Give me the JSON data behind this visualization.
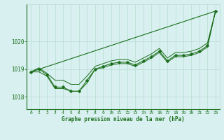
{
  "bg_color": "#d8f0f0",
  "grid_color": "#b8ddd0",
  "line_color": "#1a6e1a",
  "xlabel": "Graphe pression niveau de la mer (hPa)",
  "xlim": [
    -0.5,
    23.5
  ],
  "ylim": [
    1017.55,
    1021.35
  ],
  "yticks": [
    1018,
    1019,
    1020
  ],
  "xticks": [
    0,
    1,
    2,
    3,
    4,
    5,
    6,
    7,
    8,
    9,
    10,
    11,
    12,
    13,
    14,
    15,
    16,
    17,
    18,
    19,
    20,
    21,
    22,
    23
  ],
  "series": [
    {
      "x": [
        0,
        23
      ],
      "y": [
        1018.9,
        1021.1
      ],
      "marker": null,
      "linewidth": 0.8
    },
    {
      "x": [
        0,
        1,
        2,
        3,
        4,
        5,
        6,
        7,
        8,
        9,
        10,
        11,
        12,
        13,
        14,
        15,
        16,
        17,
        18,
        19,
        20,
        21,
        22,
        23
      ],
      "y": [
        1018.9,
        1019.0,
        1018.8,
        1018.35,
        1018.35,
        1018.2,
        1018.2,
        1018.6,
        1019.0,
        1019.1,
        1019.2,
        1019.25,
        1019.25,
        1019.15,
        1019.3,
        1019.45,
        1019.65,
        1019.3,
        1019.5,
        1019.5,
        1019.55,
        1019.65,
        1019.85,
        1021.1
      ],
      "marker": "D",
      "markersize": 2.5,
      "linewidth": 0.8
    },
    {
      "x": [
        0,
        1,
        2,
        3,
        4,
        5,
        6,
        7,
        8,
        9,
        10,
        11,
        12,
        13,
        14,
        15,
        16,
        17,
        18,
        19,
        20,
        21,
        22,
        23
      ],
      "y": [
        1018.9,
        1019.05,
        1018.85,
        1018.6,
        1018.6,
        1018.45,
        1018.45,
        1018.75,
        1019.1,
        1019.2,
        1019.3,
        1019.35,
        1019.35,
        1019.25,
        1019.4,
        1019.55,
        1019.75,
        1019.4,
        1019.6,
        1019.6,
        1019.65,
        1019.75,
        1019.95,
        1021.1
      ],
      "marker": null,
      "linewidth": 0.7
    },
    {
      "x": [
        0,
        1,
        2,
        3,
        4,
        5,
        6,
        7,
        8,
        9,
        10,
        11,
        12,
        13,
        14,
        15,
        16,
        17,
        18,
        19,
        20,
        21,
        22,
        23
      ],
      "y": [
        1018.9,
        1018.9,
        1018.75,
        1018.3,
        1018.3,
        1018.2,
        1018.2,
        1018.5,
        1019.0,
        1019.05,
        1019.15,
        1019.2,
        1019.2,
        1019.1,
        1019.25,
        1019.4,
        1019.6,
        1019.25,
        1019.45,
        1019.45,
        1019.5,
        1019.6,
        1019.8,
        1021.1
      ],
      "marker": null,
      "linewidth": 0.7
    }
  ]
}
